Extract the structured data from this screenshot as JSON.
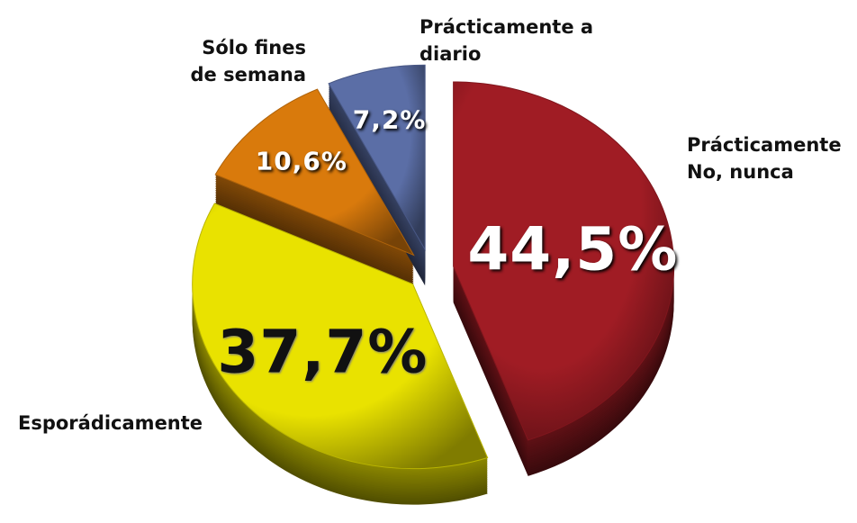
{
  "chart_data": {
    "type": "pie",
    "categories": [
      "Prácticamente No, nunca",
      "Esporádicamente",
      "Sólo fines de semana",
      "Prácticamente a diario"
    ],
    "values": [
      44.5,
      37.7,
      10.6,
      7.2
    ],
    "value_labels": [
      "44,5%",
      "37,7%",
      "10,6%",
      "7,2%"
    ],
    "colors": [
      "#a01c24",
      "#e9e200",
      "#d97a0c",
      "#5b6ea6"
    ]
  }
}
